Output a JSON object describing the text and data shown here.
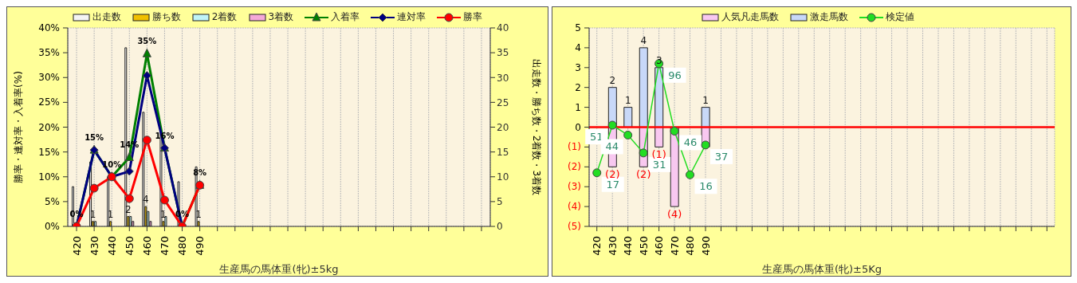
{
  "chart_data": [
    {
      "type": "bar",
      "xlabel": "生産馬の馬体重(牝)±5kg",
      "ylabel": "勝率・連対率・入着率(%)",
      "y2label": "出走数・勝ち数・2着数・3着数",
      "categories": [
        "420",
        "430",
        "440",
        "450",
        "460",
        "470",
        "480",
        "490",
        null,
        null,
        null,
        null,
        null,
        null,
        null,
        null,
        null,
        null,
        null,
        null,
        null,
        null,
        null,
        null
      ],
      "series": [
        {
          "name": "出走数",
          "axis": "y2",
          "color": "#f4f4f4",
          "values": [
            8,
            13,
            10,
            36,
            23,
            19,
            9,
            12,
            null,
            null,
            null,
            null,
            null,
            null,
            null,
            null,
            null,
            null,
            null,
            null,
            null,
            null,
            null,
            null
          ]
        },
        {
          "name": "勝ち数",
          "axis": "y2",
          "color": "#f0c000",
          "values": [
            0,
            1,
            1,
            2,
            4,
            1,
            0,
            1,
            null,
            null,
            null,
            null,
            null,
            null,
            null,
            null,
            null,
            null,
            null,
            null,
            null,
            null,
            null,
            null
          ],
          "value_labels": [
            null,
            "1",
            "1",
            "2",
            "4",
            "1",
            null,
            "1",
            null,
            null,
            null,
            null,
            null,
            null,
            null,
            null,
            null,
            null,
            null,
            null,
            null,
            null,
            null,
            null
          ]
        },
        {
          "name": "2着数",
          "axis": "y2",
          "color": "#c0f4f8",
          "values": [
            0,
            1,
            0,
            2,
            3,
            2,
            0,
            0,
            null,
            null,
            null,
            null,
            null,
            null,
            null,
            null,
            null,
            null,
            null,
            null,
            null,
            null,
            null,
            null
          ]
        },
        {
          "name": "3着数",
          "axis": "y2",
          "color": "#f4a8d8",
          "values": [
            0,
            0,
            0,
            1,
            1,
            0,
            0,
            0,
            null,
            null,
            null,
            null,
            null,
            null,
            null,
            null,
            null,
            null,
            null,
            null,
            null,
            null,
            null,
            null
          ]
        },
        {
          "name": "入着率",
          "type": "line",
          "marker": "triangle",
          "color": "#008000",
          "values": [
            0,
            15.4,
            10,
            13.9,
            34.8,
            15.8,
            0,
            8.3,
            null,
            null,
            null,
            null,
            null,
            null,
            null,
            null,
            null,
            null,
            null,
            null,
            null,
            null,
            null,
            null
          ],
          "value_labels": [
            "0%",
            "15%",
            "10%",
            "14%",
            "35%",
            "16%",
            "0%",
            "8%",
            null,
            null,
            null,
            null,
            null,
            null,
            null,
            null,
            null,
            null,
            null,
            null,
            null,
            null,
            null,
            null
          ]
        },
        {
          "name": "連対率",
          "type": "line",
          "marker": "diamond",
          "color": "#000080",
          "values": [
            0,
            15.4,
            10,
            11.1,
            30.4,
            15.8,
            0,
            null,
            null,
            null,
            null,
            null,
            null,
            null,
            null,
            null,
            null,
            null,
            null,
            null,
            null,
            null,
            null,
            null
          ]
        },
        {
          "name": "勝率",
          "type": "line",
          "marker": "circle",
          "color": "#ff0000",
          "values": [
            0,
            7.7,
            10,
            5.6,
            17.4,
            5.3,
            0,
            8.3,
            null,
            null,
            null,
            null,
            null,
            null,
            null,
            null,
            null,
            null,
            null,
            null,
            null,
            null,
            null,
            null
          ]
        }
      ],
      "ylim": [
        0,
        40
      ],
      "yticks": [
        {
          "value": 0,
          "label": "0%"
        },
        {
          "value": 5,
          "label": "5%"
        },
        {
          "value": 10,
          "label": "10%"
        },
        {
          "value": 15,
          "label": "15%"
        },
        {
          "value": 20,
          "label": "20%"
        },
        {
          "value": 25,
          "label": "25%"
        },
        {
          "value": 30,
          "label": "30%"
        },
        {
          "value": 35,
          "label": "35%"
        },
        {
          "value": 40,
          "label": "40%"
        }
      ],
      "y2lim": [
        0,
        40
      ],
      "y2ticks": [
        0,
        5,
        10,
        15,
        20,
        25,
        30,
        35,
        40
      ],
      "grid": true,
      "legend": "top"
    },
    {
      "type": "bar",
      "xlabel": "生産馬の馬体重(牝)±5Kg",
      "stacked": true,
      "categories": [
        "420",
        "430",
        "440",
        "450",
        "460",
        "470",
        "480",
        "490",
        null,
        null,
        null,
        null,
        null,
        null,
        null,
        null,
        null,
        null,
        null,
        null,
        null,
        null,
        null,
        null,
        null,
        null,
        null,
        null,
        null,
        null
      ],
      "series": [
        {
          "name": "人気凡走馬数",
          "color": "#f8c8f0",
          "values": [
            0,
            -2,
            0,
            -2,
            -1,
            -4,
            0,
            -1,
            null,
            null,
            null,
            null,
            null,
            null,
            null,
            null,
            null,
            null,
            null,
            null,
            null,
            null,
            null,
            null,
            null,
            null,
            null,
            null,
            null,
            null
          ],
          "value_labels": [
            null,
            "(2)",
            null,
            "(2)",
            "(1)",
            "(4)",
            null,
            null,
            null,
            null,
            null,
            null,
            null,
            null,
            null,
            null,
            null,
            null,
            null,
            null,
            null,
            null,
            null,
            null,
            null,
            null,
            null,
            null,
            null,
            null
          ]
        },
        {
          "name": "激走馬数",
          "color": "#c8d8f8",
          "values": [
            0,
            2,
            1,
            4,
            3,
            0,
            0,
            1,
            null,
            null,
            null,
            null,
            null,
            null,
            null,
            null,
            null,
            null,
            null,
            null,
            null,
            null,
            null,
            null,
            null,
            null,
            null,
            null,
            null,
            null
          ],
          "value_labels": [
            null,
            "2",
            "1",
            "4",
            "3",
            null,
            null,
            "1",
            null,
            null,
            null,
            null,
            null,
            null,
            null,
            null,
            null,
            null,
            null,
            null,
            null,
            null,
            null,
            null,
            null,
            null,
            null,
            null,
            null,
            null
          ]
        },
        {
          "name": "検定値",
          "type": "line",
          "marker": "circle",
          "color": "#22dd22",
          "values": [
            -2.3,
            0.1,
            -0.4,
            -1.3,
            3.2,
            -0.2,
            -2.4,
            -0.9,
            null,
            null,
            null,
            null,
            null,
            null,
            null,
            null,
            null,
            null,
            null,
            null,
            null,
            null,
            null,
            null,
            null,
            null,
            null,
            null,
            null,
            null
          ]
        }
      ],
      "annotations": [
        {
          "text": "17",
          "x": "420",
          "y": -2.3
        },
        {
          "text": "51",
          "x": "430",
          "y": 0.1
        },
        {
          "text": "44",
          "x": "440",
          "y": -0.4
        },
        {
          "text": "31",
          "x": "450",
          "y": -1.3
        },
        {
          "text": "96",
          "x": "460",
          "y": 3.2
        },
        {
          "text": "46",
          "x": "470",
          "y": -0.2
        },
        {
          "text": "16",
          "x": "480",
          "y": -2.4
        },
        {
          "text": "37",
          "x": "490",
          "y": -0.9
        }
      ],
      "ylim": [
        -5,
        5
      ],
      "yticks": [
        {
          "value": -5,
          "label": "(5)"
        },
        {
          "value": -4,
          "label": "(4)"
        },
        {
          "value": -3,
          "label": "(3)"
        },
        {
          "value": -2,
          "label": "(2)"
        },
        {
          "value": -1,
          "label": "(1)"
        },
        0,
        1,
        2,
        3,
        4,
        5
      ],
      "ref_lines": [
        {
          "axis": "y",
          "value": 0,
          "color": "#ff0000"
        }
      ],
      "grid": true,
      "legend": "top"
    }
  ]
}
